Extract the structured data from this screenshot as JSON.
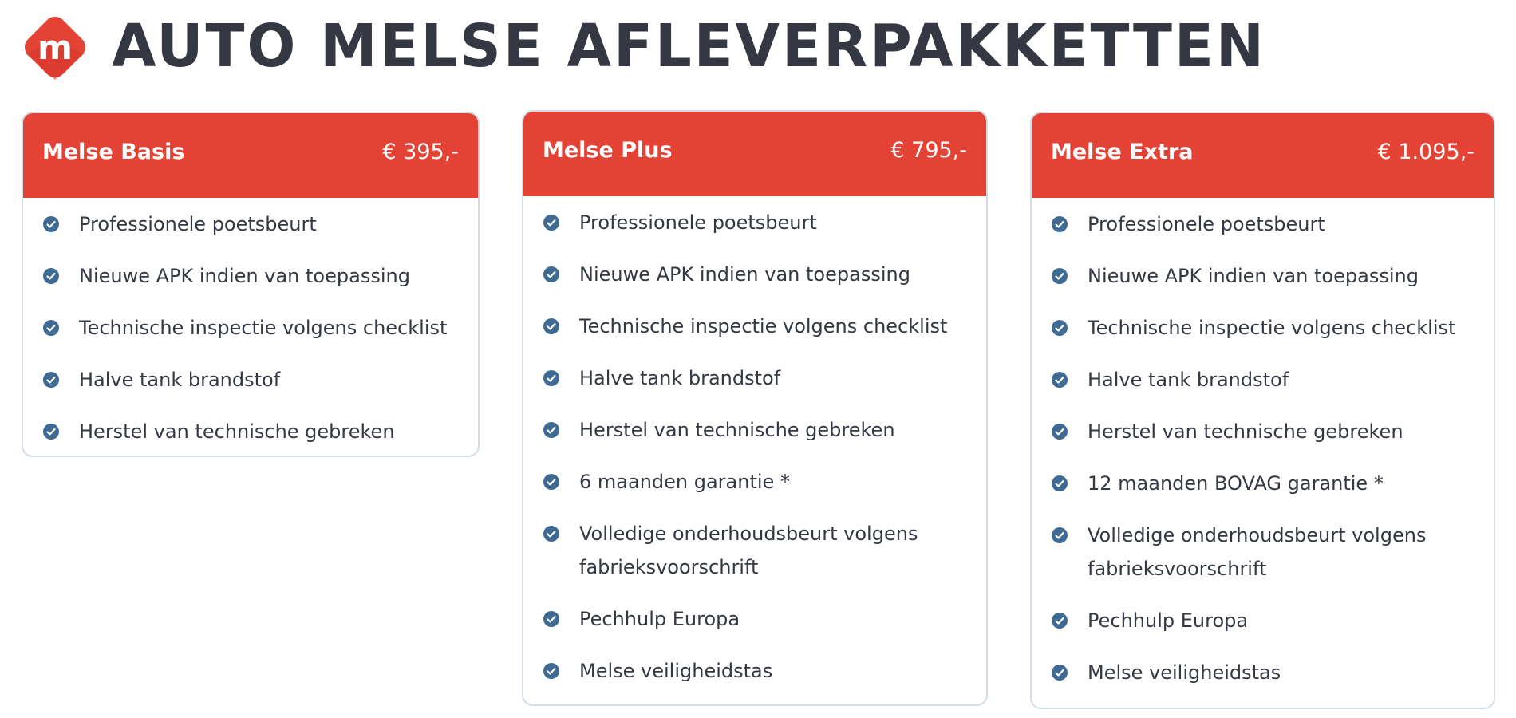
{
  "header": {
    "title": "AUTO MELSE AFLEVERPAKKETTEN",
    "logo_letter": "m",
    "brand_color": "#e44235"
  },
  "plans": [
    {
      "name": "Melse Basis",
      "price": "€ 395,-",
      "features": [
        "Professionele poetsbeurt",
        "Nieuwe APK indien van toepassing",
        "Technische inspectie volgens checklist",
        "Halve tank brandstof",
        "Herstel van technische gebreken"
      ]
    },
    {
      "name": "Melse Plus",
      "price": "€ 795,-",
      "features": [
        "Professionele poetsbeurt",
        "Nieuwe APK indien van toepassing",
        "Technische inspectie volgens checklist",
        "Halve tank brandstof",
        "Herstel van technische gebreken",
        "6 maanden garantie *",
        "Volledige onderhoudsbeurt volgens fabrieksvoorschrift",
        "Pechhulp Europa",
        "Melse veiligheidstas"
      ]
    },
    {
      "name": "Melse Extra",
      "price": "€ 1.095,-",
      "features": [
        "Professionele poetsbeurt",
        "Nieuwe APK indien van toepassing",
        "Technische inspectie volgens checklist",
        "Halve tank brandstof",
        "Herstel van technische gebreken",
        "12 maanden BOVAG garantie *",
        "Volledige onderhoudsbeurt volgens fabrieksvoorschrift",
        "Pechhulp Europa",
        "Melse veiligheidstas"
      ]
    }
  ],
  "icons": {
    "feature": "check-circle-icon",
    "check_color": "#3f6a93"
  }
}
